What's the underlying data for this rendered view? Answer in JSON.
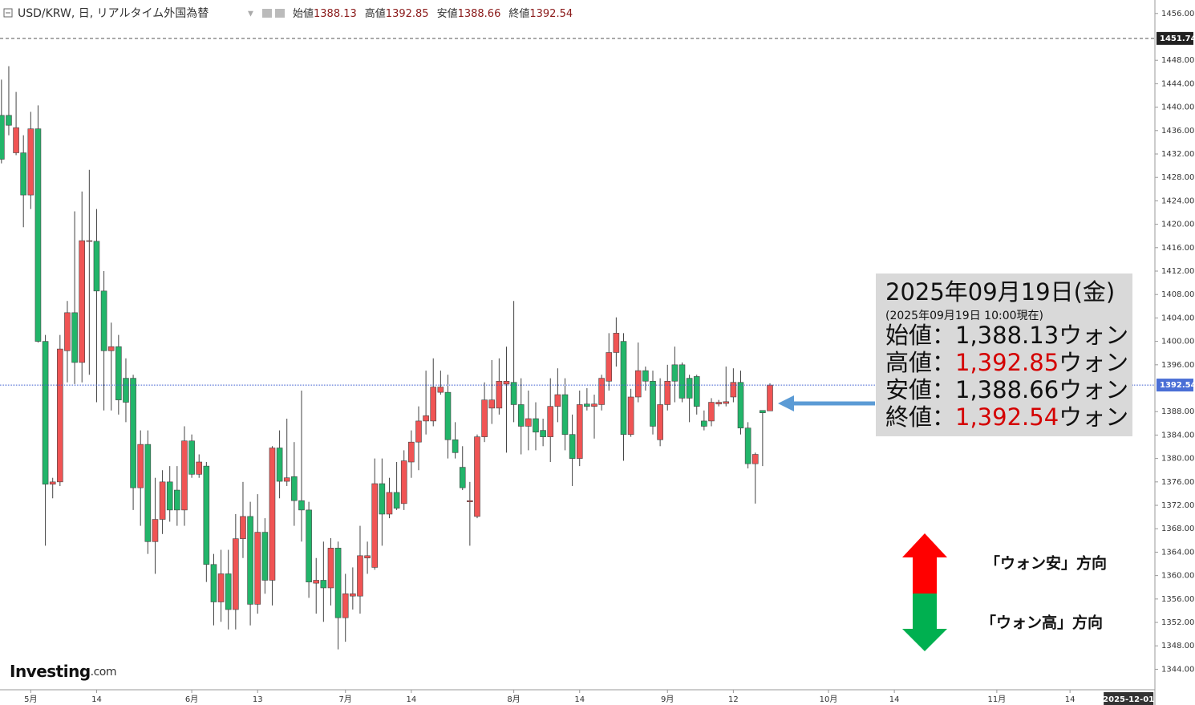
{
  "header": {
    "symbol": "USD/KRW, 日, リアルタイム外国為替",
    "labels": [
      "始値",
      "高値",
      "安値",
      "終値"
    ]
  },
  "chart_data": {
    "type": "candlestick",
    "open": [
      1438.6,
      1438.6,
      1432.2,
      1432.2,
      1425.0,
      1436.3,
      1400.0,
      1375.6,
      1376.0,
      1398.4,
      1404.9,
      1396.4,
      1417.1,
      1417.1,
      1408.6,
      1398.4,
      1399.1,
      1393.7,
      1393.7,
      1375.0,
      1382.4,
      1365.8,
      1369.6,
      1376.0,
      1374.6,
      1371.2,
      1383.0,
      1377.3,
      1378.7,
      1361.9,
      1355.5,
      1360.3,
      1354.2,
      1366.3,
      1370.1,
      1355.1,
      1367.4,
      1359.2,
      1381.8,
      1376.1,
      1376.9,
      1372.8,
      1371.2,
      1358.7,
      1359.2,
      1357.9,
      1364.7,
      1352.8,
      1356.5,
      1356.5,
      1363.0,
      1361.4,
      1375.7,
      1370.5,
      1374.2,
      1372.3,
      1379.4,
      1382.8,
      1386.4,
      1386.4,
      1391.3,
      1391.3,
      1383.2,
      1378.5,
      1372.6,
      1370.1,
      1383.7,
      1388.6,
      1388.6,
      1392.7,
      1393.0,
      1389.2,
      1385.5,
      1386.8,
      1384.8,
      1383.7,
      1388.9,
      1390.9,
      1384.1,
      1380.0,
      1389.3,
      1388.9,
      1389.2,
      1393.2,
      1398.1,
      1400.0,
      1384.1,
      1390.5,
      1395.0,
      1393.2,
      1383.2,
      1389.2,
      1396.0,
      1396.0,
      1393.7,
      1394.0,
      1386.4,
      1386.4,
      1389.3,
      1389.4,
      1390.5,
      1393.0,
      1385.2,
      1379.1,
      1388.2,
      1388.13
    ],
    "high": [
      1444.7,
      1447.0,
      1442.6,
      1435.2,
      1439.2,
      1440.3,
      1401.1,
      1376.7,
      1401.1,
      1406.9,
      1422.2,
      1425.6,
      1429.3,
      1422.6,
      1412.0,
      1403.2,
      1401.1,
      1397.1,
      1394.3,
      1384.8,
      1384.8,
      1376.7,
      1378.0,
      1378.7,
      1378.7,
      1385.5,
      1384.1,
      1380.7,
      1379.4,
      1363.7,
      1364.4,
      1364.4,
      1370.5,
      1376.0,
      1372.6,
      1373.9,
      1369.8,
      1382.1,
      1384.8,
      1386.8,
      1382.8,
      1391.6,
      1372.6,
      1363.0,
      1365.8,
      1366.4,
      1365.8,
      1360.3,
      1361.4,
      1368.5,
      1365.8,
      1380.0,
      1380.0,
      1376.7,
      1379.4,
      1381.4,
      1384.8,
      1388.9,
      1395.0,
      1397.1,
      1395.0,
      1394.3,
      1386.2,
      1382.1,
      1376.0,
      1384.1,
      1393.0,
      1396.8,
      1397.1,
      1399.1,
      1406.9,
      1393.7,
      1391.6,
      1389.6,
      1386.8,
      1393.7,
      1395.4,
      1393.7,
      1387.5,
      1391.6,
      1392.0,
      1390.9,
      1394.3,
      1401.4,
      1404.1,
      1401.4,
      1391.9,
      1399.8,
      1395.7,
      1395.0,
      1393.7,
      1396.0,
      1399.1,
      1396.4,
      1394.3,
      1394.3,
      1388.2,
      1390.3,
      1390.0,
      1395.7,
      1395.4,
      1395.0,
      1386.2,
      1381.0,
      1388.2,
      1392.85
    ],
    "low": [
      1430.4,
      1435.2,
      1431.8,
      1419.5,
      1422.6,
      1399.8,
      1365.1,
      1373.2,
      1375.3,
      1393.0,
      1392.7,
      1393.0,
      1394.3,
      1389.6,
      1388.2,
      1388.2,
      1387.5,
      1386.2,
      1371.2,
      1368.5,
      1363.7,
      1360.3,
      1367.1,
      1369.2,
      1368.5,
      1368.5,
      1376.7,
      1376.7,
      1358.9,
      1351.5,
      1352.1,
      1350.8,
      1350.8,
      1363.0,
      1351.5,
      1353.5,
      1356.9,
      1354.9,
      1373.2,
      1375.3,
      1368.5,
      1365.8,
      1356.2,
      1353.5,
      1352.1,
      1354.9,
      1347.4,
      1348.7,
      1354.2,
      1353.5,
      1360.3,
      1361.0,
      1365.1,
      1369.8,
      1371.2,
      1371.2,
      1376.7,
      1378.0,
      1384.1,
      1385.5,
      1390.9,
      1380.0,
      1380.0,
      1374.6,
      1365.1,
      1369.8,
      1382.8,
      1385.9,
      1387.5,
      1381.0,
      1386.2,
      1380.7,
      1381.4,
      1381.4,
      1382.1,
      1379.4,
      1386.2,
      1381.4,
      1375.3,
      1378.7,
      1388.2,
      1383.4,
      1388.2,
      1391.6,
      1395.7,
      1379.6,
      1383.7,
      1389.6,
      1391.6,
      1384.1,
      1382.1,
      1388.2,
      1389.6,
      1389.6,
      1386.2,
      1387.5,
      1384.8,
      1385.5,
      1388.9,
      1388.9,
      1389.6,
      1384.1,
      1378.3,
      1372.3,
      1378.7,
      1388.66
    ],
    "close": [
      1431.1,
      1436.9,
      1436.5,
      1425.0,
      1436.3,
      1400.0,
      1375.6,
      1376.0,
      1398.7,
      1404.9,
      1396.4,
      1417.2,
      1417.2,
      1408.6,
      1398.4,
      1399.1,
      1390.0,
      1389.6,
      1375.0,
      1382.4,
      1365.8,
      1369.6,
      1376.0,
      1371.2,
      1371.2,
      1383.0,
      1377.3,
      1379.4,
      1361.9,
      1355.5,
      1360.3,
      1354.2,
      1366.3,
      1370.1,
      1355.1,
      1367.4,
      1359.2,
      1381.8,
      1376.1,
      1376.7,
      1372.8,
      1371.2,
      1358.9,
      1359.2,
      1357.9,
      1364.7,
      1352.8,
      1356.9,
      1356.9,
      1363.4,
      1363.4,
      1375.7,
      1370.5,
      1374.2,
      1371.5,
      1379.6,
      1382.8,
      1386.4,
      1387.3,
      1392.2,
      1392.2,
      1383.2,
      1381.0,
      1375.0,
      1372.8,
      1383.7,
      1390.0,
      1390.0,
      1393.2,
      1393.2,
      1389.2,
      1385.5,
      1386.8,
      1384.5,
      1383.7,
      1388.9,
      1390.9,
      1384.1,
      1380.0,
      1389.2,
      1388.9,
      1389.3,
      1393.7,
      1398.1,
      1401.4,
      1384.1,
      1390.5,
      1395.0,
      1393.2,
      1385.5,
      1389.2,
      1393.2,
      1393.2,
      1390.3,
      1390.3,
      1388.9,
      1385.5,
      1389.6,
      1389.6,
      1389.7,
      1393.0,
      1385.2,
      1379.1,
      1380.7,
      1387.8,
      1392.54
    ],
    "up_color": "#f05454",
    "down_color": "#22b56a",
    "ylim": [
      1340.5,
      1458.3
    ],
    "yticks": [
      {
        "value": 1456,
        "label": "1456.00"
      },
      {
        "value": 1448,
        "label": "1448.00"
      },
      {
        "value": 1444,
        "label": "1444.00"
      },
      {
        "value": 1440,
        "label": "1440.00"
      },
      {
        "value": 1436,
        "label": "1436.00"
      },
      {
        "value": 1432,
        "label": "1432.00"
      },
      {
        "value": 1428,
        "label": "1428.00"
      },
      {
        "value": 1424,
        "label": "1424.00"
      },
      {
        "value": 1420,
        "label": "1420.00"
      },
      {
        "value": 1416,
        "label": "1416.00"
      },
      {
        "value": 1412,
        "label": "1412.00"
      },
      {
        "value": 1408,
        "label": "1408.00"
      },
      {
        "value": 1404,
        "label": "1404.00"
      },
      {
        "value": 1400,
        "label": "1400.00"
      },
      {
        "value": 1396,
        "label": "1396.00"
      },
      {
        "value": 1388,
        "label": "1388.00"
      },
      {
        "value": 1384,
        "label": "1384.00"
      },
      {
        "value": 1380,
        "label": "1380.00"
      },
      {
        "value": 1376,
        "label": "1376.00"
      },
      {
        "value": 1372,
        "label": "1372.00"
      },
      {
        "value": 1368,
        "label": "1368.00"
      },
      {
        "value": 1364,
        "label": "1364.00"
      },
      {
        "value": 1360,
        "label": "1360.00"
      },
      {
        "value": 1356,
        "label": "1356.00"
      },
      {
        "value": 1352,
        "label": "1352.00"
      },
      {
        "value": 1348,
        "label": "1348.00"
      },
      {
        "value": 1344,
        "label": "1344.00"
      }
    ],
    "ref_line": 1451.74,
    "xlim": [
      -0.2,
      157.6
    ],
    "xticks": [
      {
        "value": 4,
        "label": "5月"
      },
      {
        "value": 13,
        "label": "14"
      },
      {
        "value": 26,
        "label": "6月"
      },
      {
        "value": 35,
        "label": "13"
      },
      {
        "value": 47,
        "label": "7月"
      },
      {
        "value": 56,
        "label": "14"
      },
      {
        "value": 70,
        "label": "8月"
      },
      {
        "value": 79,
        "label": "14"
      },
      {
        "value": 91,
        "label": "9月"
      },
      {
        "value": 100,
        "label": "12"
      },
      {
        "value": 113,
        "label": "10月"
      },
      {
        "value": 122,
        "label": "14"
      },
      {
        "value": 136,
        "label": "11月"
      },
      {
        "value": 146,
        "label": "14"
      }
    ],
    "x_cursor": {
      "value": 154,
      "label": "2025-12-01"
    },
    "grid": false
  },
  "info_box": {
    "date": "2025年09月19日(金)",
    "note": "(2025年09月19日 10:00現在)",
    "rows": [
      {
        "label": "始値：",
        "value": "1,388.13",
        "unit": "ウォン",
        "color": "#111111"
      },
      {
        "label": "高値：",
        "value": "1,392.85",
        "unit": "ウォン",
        "color": "#d40000"
      },
      {
        "label": "安値：",
        "value": "1,388.66",
        "unit": "ウォン",
        "color": "#111111"
      },
      {
        "label": "終値：",
        "value": "1,392.54",
        "unit": "ウォン",
        "color": "#d40000"
      }
    ]
  },
  "legend_arrows": {
    "up": "「ウォン安」方向",
    "down": "「ウォン高」方向"
  },
  "logo": {
    "brand": "Investing",
    "suffix": ".com"
  }
}
